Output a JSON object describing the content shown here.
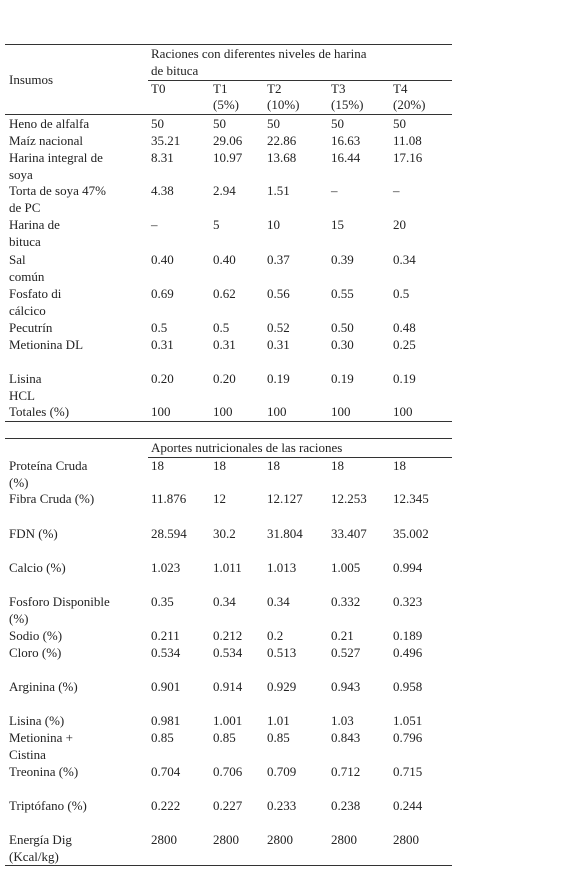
{
  "table": {
    "header": {
      "stub": "Insumos",
      "group": [
        "Raciones con diferentes niveles de harina",
        "de bituca"
      ],
      "columns": [
        {
          "name": "T0"
        },
        {
          "name": "T1",
          "sub": "(5%)"
        },
        {
          "name": "T2",
          "sub": "(10%)"
        },
        {
          "name": "T3",
          "sub": "(15%)"
        },
        {
          "name": "T4",
          "sub": "(20%)"
        }
      ]
    },
    "rows": [
      {
        "label": [
          "Heno de alfalfa"
        ],
        "values": [
          "50",
          "50",
          "50",
          "50",
          "50"
        ]
      },
      {
        "label": [
          "Maíz nacional"
        ],
        "values": [
          "35.21",
          "29.06",
          "22.86",
          "16.63",
          "11.08"
        ]
      },
      {
        "label": [
          "Harina integral de",
          "soya"
        ],
        "values": [
          "8.31",
          "10.97",
          "13.68",
          "16.44",
          "17.16"
        ]
      },
      {
        "label": [
          "Torta de soya 47%",
          "de PC"
        ],
        "values": [
          "4.38",
          "2.94",
          "1.51",
          "–",
          "–"
        ]
      },
      {
        "label": [
          "Harina de",
          "bituca"
        ],
        "values": [
          "–",
          "5",
          "10",
          "15",
          "20"
        ]
      },
      {
        "label": [
          "Sal",
          "común"
        ],
        "values": [
          "0.40",
          "0.40",
          "0.37",
          "0.39",
          "0.34"
        ]
      },
      {
        "label": [
          "Fosfato di",
          "cálcico"
        ],
        "values": [
          "0.69",
          "0.62",
          "0.56",
          "0.55",
          "0.5"
        ]
      },
      {
        "label": [
          "Pecutrín"
        ],
        "values": [
          "0.5",
          "0.5",
          "0.52",
          "0.50",
          "0.48"
        ]
      },
      {
        "label": [
          "Metionina DL"
        ],
        "values": [
          "0.31",
          "0.31",
          "0.31",
          "0.30",
          "0.25"
        ]
      },
      {
        "label": [
          "Lisina",
          "HCL"
        ],
        "values": [
          "0.20",
          "0.20",
          "0.19",
          "0.19",
          "0.19"
        ]
      },
      {
        "label": [
          "Totales (%)"
        ],
        "values": [
          "100",
          "100",
          "100",
          "100",
          "100"
        ]
      }
    ],
    "section2": {
      "title": "Aportes nutricionales de las raciones",
      "rows": [
        {
          "label": [
            "Proteína Cruda",
            "(%)"
          ],
          "values": [
            "18",
            "18",
            "18",
            "18",
            "18"
          ]
        },
        {
          "label": [
            "Fibra Cruda (%)"
          ],
          "values": [
            "11.876",
            "12",
            "12.127",
            "12.253",
            "12.345"
          ]
        },
        {
          "label": [
            "FDN (%)"
          ],
          "values": [
            "28.594",
            "30.2",
            "31.804",
            "33.407",
            "35.002"
          ]
        },
        {
          "label": [
            "Calcio (%)"
          ],
          "values": [
            "1.023",
            "1.011",
            "1.013",
            "1.005",
            "0.994"
          ]
        },
        {
          "label": [
            "Fosforo Disponible",
            "(%)"
          ],
          "values": [
            "0.35",
            "0.34",
            "0.34",
            "0.332",
            "0.323"
          ]
        },
        {
          "label": [
            "Sodio (%)"
          ],
          "values": [
            "0.211",
            "0.212",
            "0.2",
            "0.21",
            "0.189"
          ]
        },
        {
          "label": [
            "Cloro (%)"
          ],
          "values": [
            "0.534",
            "0.534",
            "0.513",
            "0.527",
            "0.496"
          ]
        },
        {
          "label": [
            "Arginina (%)"
          ],
          "values": [
            "0.901",
            "0.914",
            "0.929",
            "0.943",
            "0.958"
          ]
        },
        {
          "label": [
            "Lisina (%)"
          ],
          "values": [
            "0.981",
            "1.001",
            "1.01",
            "1.03",
            "1.051"
          ]
        },
        {
          "label": [
            "Metionina +",
            "Cistina"
          ],
          "values": [
            "0.85",
            "0.85",
            "0.85",
            "0.843",
            "0.796"
          ]
        },
        {
          "label": [
            "Treonina (%)"
          ],
          "values": [
            "0.704",
            "0.706",
            "0.709",
            "0.712",
            "0.715"
          ]
        },
        {
          "label": [
            "Triptófano (%)"
          ],
          "values": [
            "0.222",
            "0.227",
            "0.233",
            "0.238",
            "0.244"
          ]
        },
        {
          "label": [
            "Energía Dig",
            "(Kcal/kg)"
          ],
          "values": [
            "2800",
            "2800",
            "2800",
            "2800",
            "2800"
          ]
        }
      ]
    }
  }
}
